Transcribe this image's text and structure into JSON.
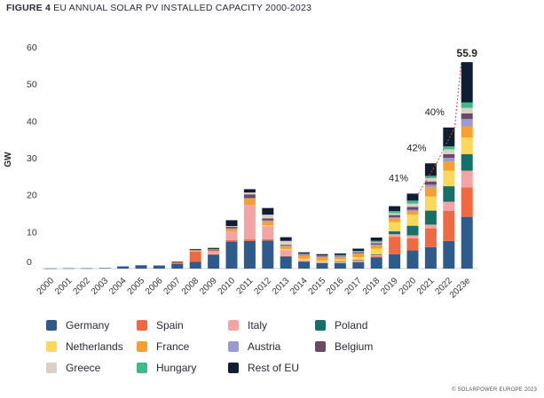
{
  "figure": {
    "label": "FIGURE 4",
    "title": "EU ANNUAL SOLAR PV INSTALLED CAPACITY 2000-2023",
    "copyright": "© SOLARPOWER EUROPE 2023"
  },
  "chart_data": {
    "type": "bar",
    "stacked": true,
    "ylabel": "GW",
    "ylim": [
      0,
      60
    ],
    "yticks": [
      0,
      10,
      20,
      30,
      40,
      50,
      60
    ],
    "categories": [
      "2000",
      "2001",
      "2002",
      "2003",
      "2004",
      "2005",
      "2006",
      "2007",
      "2008",
      "2009",
      "2010",
      "2011",
      "2012",
      "2013",
      "2014",
      "2015",
      "2016",
      "2017",
      "2018",
      "2019",
      "2020",
      "2021",
      "2022",
      "2023e"
    ],
    "series": [
      {
        "name": "Germany",
        "color": "#2e5a8c",
        "values": [
          0.05,
          0.1,
          0.1,
          0.15,
          0.6,
          0.9,
          0.8,
          1.2,
          1.8,
          3.8,
          7.3,
          7.5,
          7.6,
          3.3,
          1.9,
          1.5,
          1.5,
          1.7,
          3.0,
          3.9,
          4.9,
          5.8,
          7.5,
          14.0
        ]
      },
      {
        "name": "Spain",
        "color": "#ee6a40",
        "values": [
          0,
          0,
          0,
          0,
          0,
          0,
          0.1,
          0.5,
          2.8,
          0.1,
          0.4,
          0.4,
          0.3,
          0.1,
          0,
          0,
          0,
          0.1,
          0.3,
          4.7,
          3.3,
          5.1,
          8.1,
          8.0
        ]
      },
      {
        "name": "Italy",
        "color": "#f3a5a5",
        "values": [
          0,
          0,
          0,
          0,
          0,
          0,
          0,
          0.1,
          0.3,
          0.7,
          2.3,
          9.3,
          3.6,
          1.6,
          0.4,
          0.3,
          0.4,
          0.4,
          0.4,
          0.7,
          0.8,
          1.0,
          2.5,
          4.5
        ]
      },
      {
        "name": "Poland",
        "color": "#16706a",
        "values": [
          0,
          0,
          0,
          0,
          0,
          0,
          0,
          0,
          0,
          0,
          0,
          0,
          0,
          0,
          0,
          0,
          0.1,
          0.1,
          0.2,
          0.8,
          2.6,
          3.8,
          4.2,
          4.5
        ]
      },
      {
        "name": "Netherlands",
        "color": "#fbd85a",
        "values": [
          0,
          0,
          0,
          0,
          0,
          0,
          0,
          0,
          0,
          0,
          0,
          0,
          0.2,
          0.3,
          0.4,
          0.4,
          0.5,
          0.8,
          1.5,
          2.5,
          3.0,
          3.8,
          4.2,
          4.5
        ]
      },
      {
        "name": "France",
        "color": "#f5a030",
        "values": [
          0,
          0,
          0,
          0,
          0,
          0,
          0,
          0,
          0.1,
          0.3,
          0.8,
          1.8,
          1.1,
          0.7,
          0.9,
          0.9,
          0.6,
          0.9,
          0.9,
          1.0,
          1.0,
          2.5,
          2.5,
          3.0
        ]
      },
      {
        "name": "Austria",
        "color": "#9a9ad2",
        "values": [
          0,
          0,
          0,
          0,
          0,
          0,
          0,
          0,
          0,
          0,
          0.1,
          0.1,
          0.2,
          0.3,
          0.2,
          0.2,
          0.2,
          0.2,
          0.2,
          0.3,
          0.3,
          0.7,
          1.0,
          2.0
        ]
      },
      {
        "name": "Belgium",
        "color": "#6b4a62",
        "values": [
          0,
          0,
          0,
          0,
          0,
          0,
          0,
          0,
          0.1,
          0.3,
          0.4,
          1.0,
          0.6,
          0.2,
          0.1,
          0.1,
          0.2,
          0.3,
          0.4,
          0.6,
          0.8,
          0.9,
          1.0,
          1.5
        ]
      },
      {
        "name": "Greece",
        "color": "#d9d1c8",
        "values": [
          0,
          0,
          0,
          0,
          0,
          0,
          0,
          0,
          0,
          0.1,
          0.2,
          0.5,
          1.0,
          1.0,
          0.1,
          0.1,
          0.1,
          0.1,
          0.2,
          0.5,
          0.9,
          0.9,
          1.3,
          1.5
        ]
      },
      {
        "name": "Hungary",
        "color": "#3fb98a",
        "values": [
          0,
          0,
          0,
          0,
          0,
          0,
          0,
          0,
          0,
          0,
          0,
          0,
          0,
          0,
          0,
          0,
          0.1,
          0.2,
          0.4,
          0.6,
          0.8,
          0.6,
          0.8,
          1.5
        ]
      },
      {
        "name": "Rest of EU",
        "color": "#0f1e33",
        "values": [
          0,
          0,
          0,
          0,
          0,
          0,
          0,
          0.1,
          0.2,
          0.3,
          1.6,
          0.9,
          1.8,
          1.0,
          0.4,
          0.4,
          0.4,
          0.6,
          0.9,
          1.3,
          1.9,
          3.4,
          5.1,
          10.9
        ]
      }
    ],
    "annotations": [
      {
        "text": "41%",
        "x": "2020"
      },
      {
        "text": "42%",
        "x": "2021"
      },
      {
        "text": "40%",
        "x": "2022"
      },
      {
        "text": "55.9",
        "x": "2023e"
      }
    ],
    "grid": false,
    "legend_position": "bottom-left"
  }
}
